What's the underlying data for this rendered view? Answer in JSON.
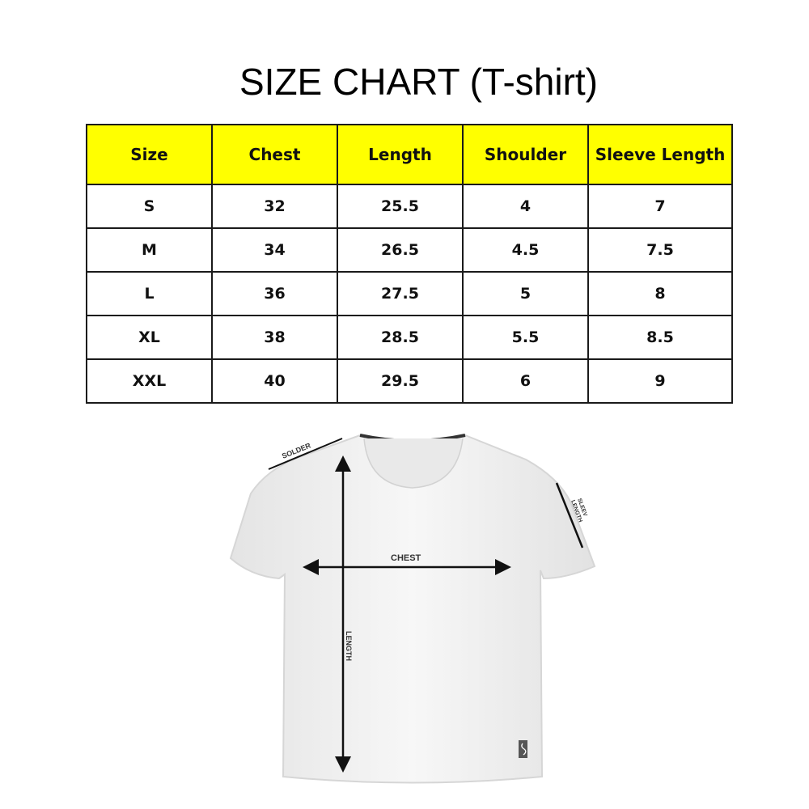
{
  "title": "SIZE CHART (T-shirt)",
  "table": {
    "header_color": "#ffff00",
    "columns": [
      "Size",
      "Chest",
      "Length",
      "Shoulder",
      "Sleeve Length"
    ],
    "rows": [
      [
        "S",
        "32",
        "25.5",
        "4",
        "7"
      ],
      [
        "M",
        "34",
        "26.5",
        "4.5",
        "7.5"
      ],
      [
        "L",
        "36",
        "27.5",
        "5",
        "8"
      ],
      [
        "XL",
        "38",
        "28.5",
        "5.5",
        "8.5"
      ],
      [
        "XXL",
        "40",
        "29.5",
        "6",
        "9"
      ]
    ]
  },
  "diagram": {
    "shoulder_label": "SOLDER",
    "sleeve_label_1": "SLEEV",
    "sleeve_label_2": "LENGTH",
    "chest_label": "CHEST",
    "length_label": "LENGTH"
  }
}
